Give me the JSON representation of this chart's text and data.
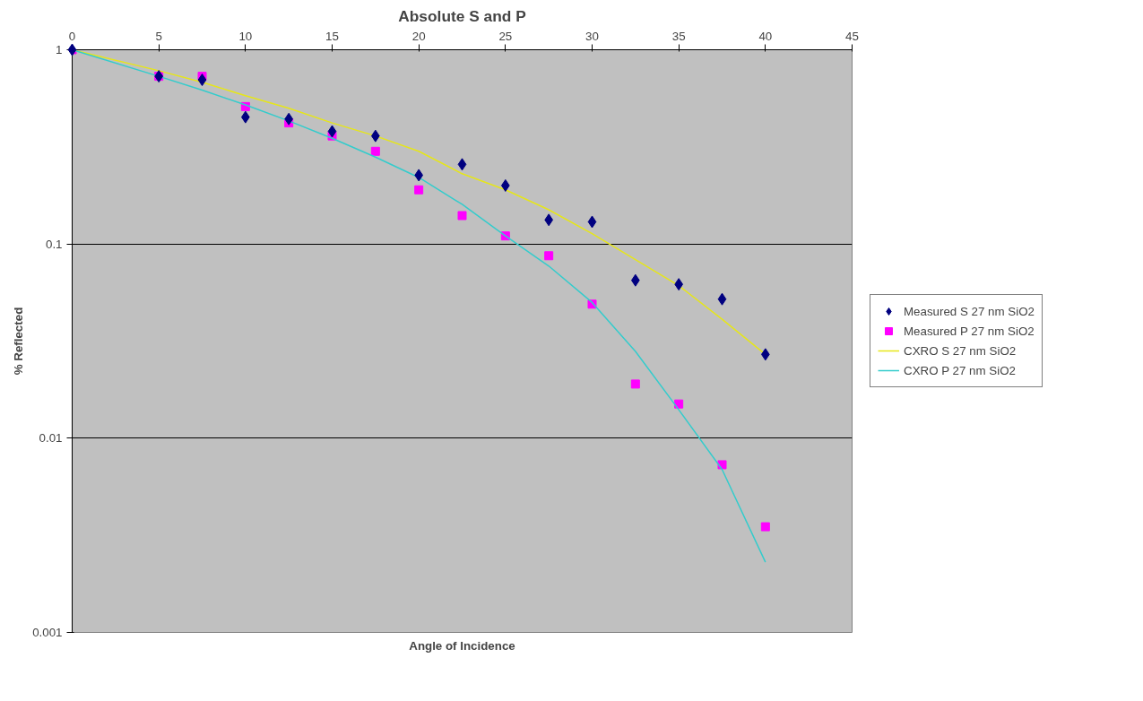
{
  "chart_data": {
    "type": "scatter",
    "title": "Absolute S and P",
    "xlabel": "Angle of Incidence",
    "ylabel": "% Reflected",
    "log": "y",
    "grid": "y",
    "legend": "right",
    "xlim": [
      0,
      45
    ],
    "xticks": [
      0,
      5,
      10,
      15,
      20,
      25,
      30,
      35,
      40,
      45
    ],
    "ylim": [
      0.001,
      1
    ],
    "yticks": [
      0.001,
      0.01,
      0.1,
      1
    ],
    "x": [
      0,
      5,
      7.5,
      10,
      12.5,
      15,
      17.5,
      20,
      22.5,
      25,
      27.5,
      30,
      32.5,
      35,
      37.5,
      40
    ],
    "series": [
      {
        "name": "Measured S 27 nm SiO2",
        "marker": "diamond",
        "color": "#000080",
        "values": [
          1,
          0.73,
          0.7,
          0.45,
          0.44,
          0.38,
          0.36,
          0.226,
          0.257,
          0.2,
          0.133,
          0.13,
          0.065,
          0.062,
          0.052,
          0.027
        ]
      },
      {
        "name": "Measured P 27 nm SiO2",
        "marker": "square",
        "color": "#ff00ff",
        "values": [
          1,
          0.73,
          0.73,
          0.51,
          0.42,
          0.36,
          0.3,
          0.19,
          0.14,
          0.11,
          0.087,
          0.049,
          0.019,
          0.015,
          0.0073,
          0.0035
        ]
      },
      {
        "name": "CXRO S 27 nm SiO2",
        "type": "line",
        "marker": "none",
        "color": "#e6e619",
        "values": [
          1,
          0.78,
          0.68,
          0.58,
          0.5,
          0.42,
          0.36,
          0.3,
          0.23,
          0.19,
          0.15,
          0.113,
          0.083,
          0.061,
          0.041,
          0.027
        ]
      },
      {
        "name": "CXRO P 27 nm SiO2",
        "type": "line",
        "marker": "none",
        "color": "#33cccc",
        "values": [
          1,
          0.73,
          0.62,
          0.52,
          0.43,
          0.35,
          0.28,
          0.22,
          0.16,
          0.11,
          0.077,
          0.05,
          0.028,
          0.014,
          0.0069,
          0.0023
        ]
      }
    ]
  }
}
